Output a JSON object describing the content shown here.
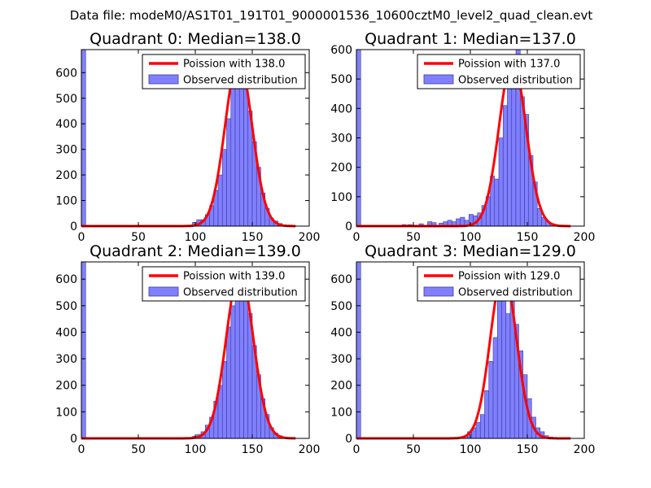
{
  "suptitle": "Data file: modeM0/AS1T01_191T01_9000001536_10600cztM0_level2_quad_clean.evt",
  "colors": {
    "bar_fill": "#8080ff",
    "bar_edge": "#3a3aa0",
    "curve": "#ff0000"
  },
  "chart_data": [
    {
      "type": "bar",
      "title": "Quadrant 0: Median=138.0",
      "xlim": [
        0,
        200
      ],
      "ylim": [
        0,
        690
      ],
      "xticks": [
        0,
        50,
        100,
        150,
        200
      ],
      "yticks": [
        0,
        100,
        200,
        300,
        400,
        500,
        600
      ],
      "legend": [
        "Poission with 138.0",
        "Observed distribution"
      ],
      "legend_position": "top-right",
      "poisson_mean": 138.0,
      "poisson_peak": 655,
      "bin_width": 3.75,
      "bins": [
        [
          0,
          690
        ],
        [
          97.5,
          15
        ],
        [
          101.25,
          25
        ],
        [
          105,
          25
        ],
        [
          108.75,
          45
        ],
        [
          112.5,
          80
        ],
        [
          116.25,
          140
        ],
        [
          120,
          200
        ],
        [
          123.75,
          300
        ],
        [
          127.5,
          420
        ],
        [
          131.25,
          540
        ],
        [
          135,
          600
        ],
        [
          138.75,
          560
        ],
        [
          142.5,
          640
        ],
        [
          146.25,
          450
        ],
        [
          150,
          330
        ],
        [
          153.75,
          230
        ],
        [
          157.5,
          130
        ],
        [
          161.25,
          70
        ],
        [
          165,
          30
        ],
        [
          168.75,
          20
        ],
        [
          172.5,
          10
        ],
        [
          176.25,
          5
        ],
        [
          180,
          3
        ]
      ]
    },
    {
      "type": "bar",
      "title": "Quadrant 1: Median=137.0",
      "xlim": [
        0,
        200
      ],
      "ylim": [
        0,
        600
      ],
      "xticks": [
        0,
        50,
        100,
        150,
        200
      ],
      "yticks": [
        0,
        100,
        200,
        300,
        400,
        500,
        600
      ],
      "legend": [
        "Poission with 137.0",
        "Observed distribution"
      ],
      "legend_position": "top-right",
      "poisson_mean": 137.0,
      "poisson_peak": 565,
      "bin_width": 3.75,
      "bins": [
        [
          0,
          600
        ],
        [
          40,
          5
        ],
        [
          45,
          5
        ],
        [
          55,
          8
        ],
        [
          62.5,
          15
        ],
        [
          66.25,
          12
        ],
        [
          72.5,
          10
        ],
        [
          76.25,
          15
        ],
        [
          80,
          20
        ],
        [
          83.75,
          15
        ],
        [
          87.5,
          25
        ],
        [
          91.25,
          30
        ],
        [
          95,
          20
        ],
        [
          98.75,
          40
        ],
        [
          102.5,
          35
        ],
        [
          106.25,
          45
        ],
        [
          110,
          70
        ],
        [
          113.75,
          100
        ],
        [
          117.5,
          170
        ],
        [
          121.25,
          160
        ],
        [
          125,
          300
        ],
        [
          128.75,
          410
        ],
        [
          132.5,
          500
        ],
        [
          136.25,
          570
        ],
        [
          140,
          600
        ],
        [
          143.75,
          440
        ],
        [
          147.5,
          380
        ],
        [
          151.25,
          240
        ],
        [
          155,
          150
        ],
        [
          158.75,
          60
        ],
        [
          162.5,
          30
        ],
        [
          166.25,
          15
        ],
        [
          170,
          8
        ],
        [
          173.75,
          5
        ]
      ]
    },
    {
      "type": "bar",
      "title": "Quadrant 2: Median=139.0",
      "xlim": [
        0,
        200
      ],
      "ylim": [
        0,
        665
      ],
      "xticks": [
        0,
        50,
        100,
        150,
        200
      ],
      "yticks": [
        0,
        100,
        200,
        300,
        400,
        500,
        600
      ],
      "legend": [
        "Poission with 139.0",
        "Observed distribution"
      ],
      "legend_position": "top-right",
      "poisson_mean": 139.0,
      "poisson_peak": 630,
      "bin_width": 3.75,
      "bins": [
        [
          0,
          665
        ],
        [
          97.5,
          8
        ],
        [
          101.25,
          15
        ],
        [
          105,
          25
        ],
        [
          108.75,
          50
        ],
        [
          112.5,
          80
        ],
        [
          116.25,
          140
        ],
        [
          120,
          200
        ],
        [
          123.75,
          290
        ],
        [
          127.5,
          420
        ],
        [
          131.25,
          500
        ],
        [
          135,
          580
        ],
        [
          138.75,
          520
        ],
        [
          142.5,
          610
        ],
        [
          146.25,
          470
        ],
        [
          150,
          350
        ],
        [
          153.75,
          240
        ],
        [
          157.5,
          150
        ],
        [
          161.25,
          90
        ],
        [
          165,
          40
        ],
        [
          168.75,
          20
        ],
        [
          172.5,
          10
        ],
        [
          176.25,
          5
        ],
        [
          180,
          3
        ]
      ]
    },
    {
      "type": "bar",
      "title": "Quadrant 3: Median=129.0",
      "xlim": [
        0,
        200
      ],
      "ylim": [
        0,
        665
      ],
      "xticks": [
        0,
        50,
        100,
        150,
        200
      ],
      "yticks": [
        0,
        100,
        200,
        300,
        400,
        500,
        600
      ],
      "legend": [
        "Poission with 129.0",
        "Observed distribution"
      ],
      "legend_position": "top-right",
      "poisson_mean": 129.0,
      "poisson_peak": 630,
      "bin_width": 3.75,
      "bins": [
        [
          0,
          665
        ],
        [
          90,
          5
        ],
        [
          93.75,
          8
        ],
        [
          97.5,
          25
        ],
        [
          101.25,
          40
        ],
        [
          105,
          60
        ],
        [
          108.75,
          90
        ],
        [
          112.5,
          180
        ],
        [
          116.25,
          290
        ],
        [
          120,
          380
        ],
        [
          123.75,
          530
        ],
        [
          127.5,
          550
        ],
        [
          131.25,
          470
        ],
        [
          135,
          550
        ],
        [
          138.75,
          430
        ],
        [
          142.5,
          330
        ],
        [
          146.25,
          240
        ],
        [
          150,
          150
        ],
        [
          153.75,
          80
        ],
        [
          157.5,
          40
        ],
        [
          161.25,
          25
        ],
        [
          165,
          10
        ],
        [
          168.75,
          5
        ],
        [
          172.5,
          3
        ]
      ]
    }
  ]
}
